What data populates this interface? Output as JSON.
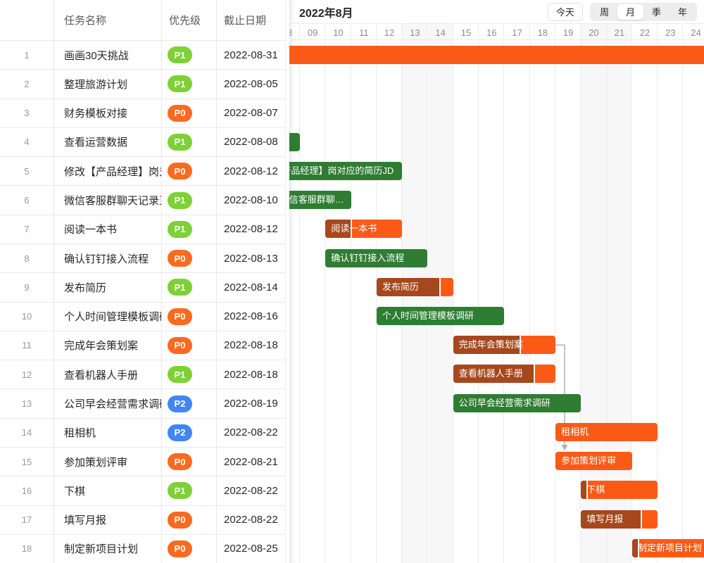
{
  "table": {
    "headers": {
      "index": "",
      "name": "任务名称",
      "priority": "优先级",
      "due": "截止日期"
    },
    "rows": [
      {
        "index": "1",
        "name": "画画30天挑战",
        "priority": "P1",
        "due": "2022-08-31"
      },
      {
        "index": "2",
        "name": "整理旅游计划",
        "priority": "P1",
        "due": "2022-08-05"
      },
      {
        "index": "3",
        "name": "财务模板对接",
        "priority": "P0",
        "due": "2022-08-07"
      },
      {
        "index": "4",
        "name": "查看运营数据",
        "priority": "P1",
        "due": "2022-08-08"
      },
      {
        "index": "5",
        "name": "修改【产品经理】岗对应的简历JD",
        "priority": "P0",
        "due": "2022-08-12"
      },
      {
        "index": "6",
        "name": "微信客服群聊天记录直播",
        "priority": "P1",
        "due": "2022-08-10"
      },
      {
        "index": "7",
        "name": "阅读一本书",
        "priority": "P1",
        "due": "2022-08-12"
      },
      {
        "index": "8",
        "name": "确认钉钉接入流程",
        "priority": "P0",
        "due": "2022-08-13"
      },
      {
        "index": "9",
        "name": "发布简历",
        "priority": "P1",
        "due": "2022-08-14"
      },
      {
        "index": "10",
        "name": "个人时间管理模板调研",
        "priority": "P0",
        "due": "2022-08-16"
      },
      {
        "index": "11",
        "name": "完成年会策划案",
        "priority": "P0",
        "due": "2022-08-18"
      },
      {
        "index": "12",
        "name": "查看机器人手册",
        "priority": "P1",
        "due": "2022-08-18"
      },
      {
        "index": "13",
        "name": "公司早会经营需求调研",
        "priority": "P2",
        "due": "2022-08-19"
      },
      {
        "index": "14",
        "name": "租相机",
        "priority": "P2",
        "due": "2022-08-22"
      },
      {
        "index": "15",
        "name": "参加策划评审",
        "priority": "P0",
        "due": "2022-08-21"
      },
      {
        "index": "16",
        "name": "下棋",
        "priority": "P1",
        "due": "2022-08-22"
      },
      {
        "index": "17",
        "name": "填写月报",
        "priority": "P0",
        "due": "2022-08-22"
      },
      {
        "index": "18",
        "name": "制定新项目计划",
        "priority": "P0",
        "due": "2022-08-25"
      }
    ]
  },
  "priority_colors": {
    "P0": "#fb6a20",
    "P1": "#7dd136",
    "P2": "#4086f4"
  },
  "toolbar": {
    "title": "2022年8月",
    "today_label": "今天",
    "views": [
      "周",
      "月",
      "季",
      "年"
    ],
    "selected_view": "月"
  },
  "timeline": {
    "days": [
      "08",
      "09",
      "10",
      "11",
      "12",
      "13",
      "14",
      "15",
      "16",
      "17",
      "18",
      "19",
      "20",
      "21",
      "22",
      "23",
      "24"
    ],
    "weekend_days": [
      "13",
      "14",
      "20",
      "21"
    ]
  },
  "chart_data": {
    "type": "gantt",
    "title": "2022年8月",
    "x_axis_days": [
      8,
      9,
      10,
      11,
      12,
      13,
      14,
      15,
      16,
      17,
      18,
      19,
      20,
      21,
      22,
      23,
      24
    ],
    "colors": {
      "orange": "#fb5a16",
      "progress": "#a6471d",
      "green": "#2e7d32",
      "arrow": "#b0b0b0"
    },
    "bars": [
      {
        "row": 1,
        "name": "画画30天挑战",
        "start": 1,
        "end": 31,
        "color": "orange",
        "progress": 0
      },
      {
        "row": 4,
        "name": "查看运营数据",
        "start": 1,
        "end": 8,
        "color": "green",
        "progress": 0
      },
      {
        "row": 5,
        "name": "修改【产品经理】岗对应的简历JD",
        "start": 7,
        "end": 12,
        "color": "green",
        "progress": 0
      },
      {
        "row": 6,
        "name": "微信客服群聊天记录直播",
        "start": 8,
        "end": 10,
        "color": "green",
        "progress": 0
      },
      {
        "row": 7,
        "name": "阅读一本书",
        "start": 10,
        "end": 12,
        "color": "orange",
        "progress": 0.35
      },
      {
        "row": 8,
        "name": "确认钉钉接入流程",
        "start": 10,
        "end": 13,
        "color": "green",
        "progress": 0
      },
      {
        "row": 9,
        "name": "发布简历",
        "start": 12,
        "end": 14,
        "color": "orange",
        "progress": 0.84
      },
      {
        "row": 10,
        "name": "个人时间管理模板调研",
        "start": 12,
        "end": 16,
        "color": "green",
        "progress": 0
      },
      {
        "row": 11,
        "name": "完成年会策划案",
        "start": 15,
        "end": 18,
        "color": "orange",
        "progress": 0.66
      },
      {
        "row": 12,
        "name": "查看机器人手册",
        "start": 15,
        "end": 18,
        "color": "orange",
        "progress": 0.8
      },
      {
        "row": 13,
        "name": "公司早会经营需求调研",
        "start": 15,
        "end": 19,
        "color": "green",
        "progress": 0
      },
      {
        "row": 14,
        "name": "租相机",
        "start": 19,
        "end": 22,
        "color": "orange",
        "progress": 0
      },
      {
        "row": 15,
        "name": "参加策划评审",
        "start": 19,
        "end": 21,
        "color": "orange",
        "progress": 0
      },
      {
        "row": 16,
        "name": "下棋",
        "start": 20,
        "end": 22,
        "color": "orange",
        "progress": 0.09
      },
      {
        "row": 17,
        "name": "填写月报",
        "start": 20,
        "end": 22,
        "color": "orange",
        "progress": 0.8
      },
      {
        "row": 18,
        "name": "制定新项目计划",
        "start": 22,
        "end": 25,
        "color": "orange",
        "progress": 0.07
      }
    ],
    "dependencies": [
      {
        "from_row": 11,
        "to_row": 15
      }
    ]
  }
}
